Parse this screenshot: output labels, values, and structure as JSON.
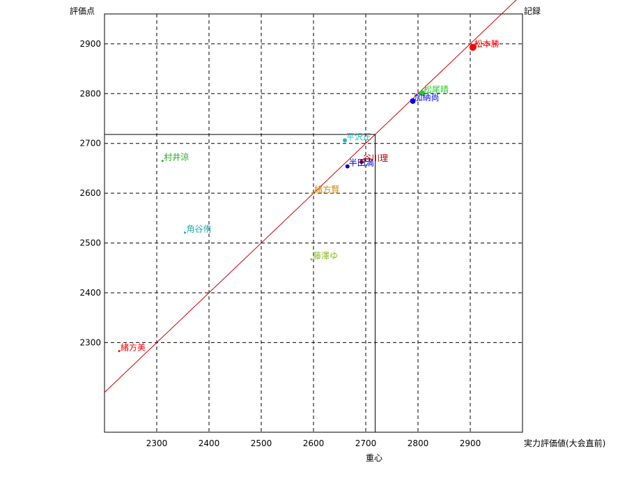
{
  "chart_data": {
    "type": "scatter",
    "title": "",
    "corner_labels": {
      "y_top_left": "評価点",
      "top_right": "記録",
      "x_right": "実力評価値(大会直前)",
      "x_bottom": "重心"
    },
    "xlim": [
      2200,
      3000
    ],
    "ylim": [
      2120,
      2960
    ],
    "x_ticks": [
      2300,
      2400,
      2500,
      2600,
      2700,
      2800,
      2900
    ],
    "y_ticks": [
      2300,
      2400,
      2500,
      2600,
      2700,
      2800,
      2900
    ],
    "grid": "dashed",
    "diagonal": {
      "from": [
        2200,
        2200
      ],
      "to": [
        3000,
        3000
      ],
      "color": "#cc0000"
    },
    "crosshair": {
      "x": 2718,
      "y": 2718
    },
    "points": [
      {
        "name": "松本勝",
        "x": 2905,
        "y": 2893,
        "color": "#ff0000",
        "size": 5
      },
      {
        "name": "松尾晴",
        "x": 2808,
        "y": 2801,
        "color": "#22cc22",
        "size": 4
      },
      {
        "name": "加納尚",
        "x": 2790,
        "y": 2785,
        "color": "#0000ff",
        "size": 4
      },
      {
        "name": "平沢正",
        "x": 2660,
        "y": 2706,
        "color": "#22bbbb",
        "size": 3
      },
      {
        "name": "谷川理",
        "x": 2692,
        "y": 2663,
        "color": "#aa0000",
        "size": 3
      },
      {
        "name": "半田満",
        "x": 2665,
        "y": 2654,
        "color": "#0000cc",
        "size": 3
      },
      {
        "name": "村井涼",
        "x": 2311,
        "y": 2665,
        "color": "#22aa22",
        "size": 1.5
      },
      {
        "name": "緒方賢",
        "x": 2599,
        "y": 2600,
        "color": "#cc8800",
        "size": 1.5
      },
      {
        "name": "角谷侑",
        "x": 2354,
        "y": 2521,
        "color": "#22aaaa",
        "size": 1.5
      },
      {
        "name": "藤澤ゆ",
        "x": 2596,
        "y": 2467,
        "color": "#88bb22",
        "size": 1.5
      },
      {
        "name": "緒方美",
        "x": 2228,
        "y": 2283,
        "color": "#ff0000",
        "size": 1.5
      }
    ]
  }
}
